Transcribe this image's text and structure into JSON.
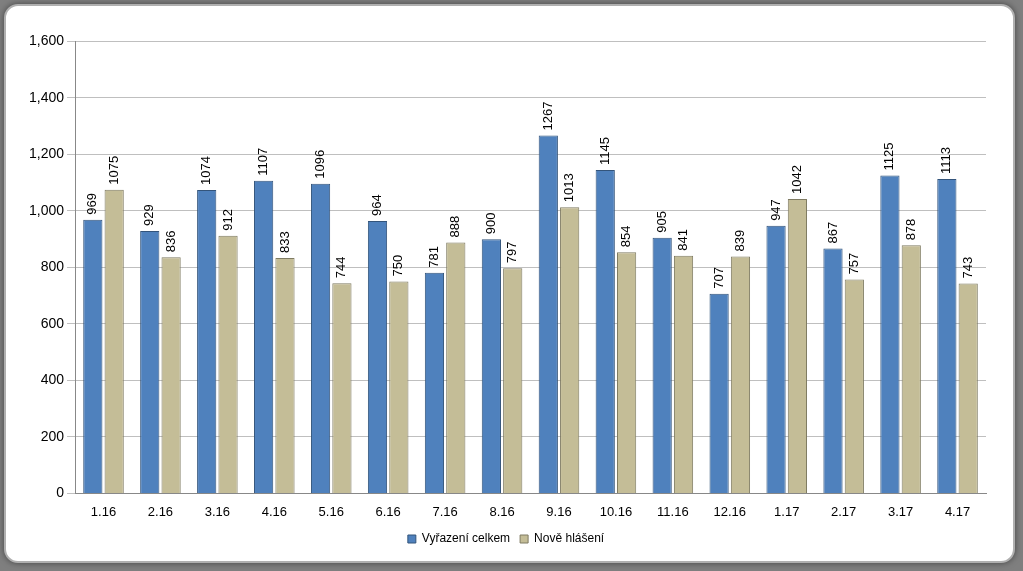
{
  "chart_data": {
    "type": "bar",
    "categories": [
      "1.16",
      "2.16",
      "3.16",
      "4.16",
      "5.16",
      "6.16",
      "7.16",
      "8.16",
      "9.16",
      "10.16",
      "11.16",
      "12.16",
      "1.17",
      "2.17",
      "3.17",
      "4.17"
    ],
    "series": [
      {
        "name": "Vyřazení celkem",
        "color": "#4f81bd",
        "values": [
          969,
          929,
          1074,
          1107,
          1096,
          964,
          781,
          900,
          1267,
          1145,
          905,
          707,
          947,
          867,
          1125,
          1113
        ]
      },
      {
        "name": "Nově hlášení",
        "color": "#c4bd97",
        "values": [
          1075,
          836,
          912,
          833,
          744,
          750,
          888,
          797,
          1013,
          854,
          841,
          839,
          1042,
          757,
          878,
          743
        ]
      }
    ],
    "ylim": [
      0,
      1600
    ],
    "yticks": [
      0,
      200,
      400,
      600,
      800,
      1000,
      1200,
      1400,
      1600
    ],
    "grid": true,
    "legend": "bottom",
    "data_labels": true
  }
}
